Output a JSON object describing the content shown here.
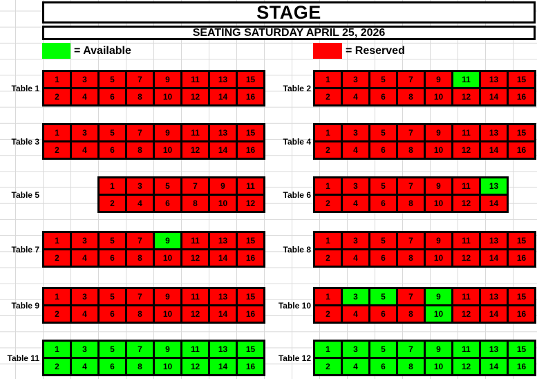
{
  "header": {
    "title": "STAGE",
    "subtitle": "SEATING SATURDAY APRIL 25, 2026"
  },
  "legend": {
    "available_label": "= Available",
    "reserved_label": "= Reserved"
  },
  "colors": {
    "available": "#00ff00",
    "reserved": "#ff0000",
    "border": "#000000",
    "gridline": "#d9d9d9",
    "background": "#ffffff"
  },
  "tables": [
    {
      "label": "Table 1",
      "side": "left",
      "seat_rows": [
        [
          1,
          3,
          5,
          7,
          9,
          11,
          13,
          15
        ],
        [
          2,
          4,
          6,
          8,
          10,
          12,
          14,
          16
        ]
      ],
      "available": []
    },
    {
      "label": "Table 2",
      "side": "right",
      "seat_rows": [
        [
          1,
          3,
          5,
          7,
          9,
          11,
          13,
          15
        ],
        [
          2,
          4,
          6,
          8,
          10,
          12,
          14,
          16
        ]
      ],
      "available": [
        11
      ]
    },
    {
      "label": "Table 3",
      "side": "left",
      "seat_rows": [
        [
          1,
          3,
          5,
          7,
          9,
          11,
          13,
          15
        ],
        [
          2,
          4,
          6,
          8,
          10,
          12,
          14,
          16
        ]
      ],
      "available": []
    },
    {
      "label": "Table 4",
      "side": "right",
      "seat_rows": [
        [
          1,
          3,
          5,
          7,
          9,
          11,
          13,
          15
        ],
        [
          2,
          4,
          6,
          8,
          10,
          12,
          14,
          16
        ]
      ],
      "available": []
    },
    {
      "label": "Table 5",
      "side": "left",
      "seat_rows": [
        [
          1,
          3,
          5,
          7,
          9,
          11
        ],
        [
          2,
          4,
          6,
          8,
          10,
          12
        ]
      ],
      "available": []
    },
    {
      "label": "Table 6",
      "side": "right",
      "seat_rows": [
        [
          1,
          3,
          5,
          7,
          9,
          11,
          13
        ],
        [
          2,
          4,
          6,
          8,
          10,
          12,
          14
        ]
      ],
      "available": [
        13
      ]
    },
    {
      "label": "Table 7",
      "side": "left",
      "seat_rows": [
        [
          1,
          3,
          5,
          7,
          9,
          11,
          13,
          15
        ],
        [
          2,
          4,
          6,
          8,
          10,
          12,
          14,
          16
        ]
      ],
      "available": [
        9
      ]
    },
    {
      "label": "Table 8",
      "side": "right",
      "seat_rows": [
        [
          1,
          3,
          5,
          7,
          9,
          11,
          13,
          15
        ],
        [
          2,
          4,
          6,
          8,
          10,
          12,
          14,
          16
        ]
      ],
      "available": []
    },
    {
      "label": "Table 9",
      "side": "left",
      "seat_rows": [
        [
          1,
          3,
          5,
          7,
          9,
          11,
          13,
          15
        ],
        [
          2,
          4,
          6,
          8,
          10,
          12,
          14,
          16
        ]
      ],
      "available": []
    },
    {
      "label": "Table 10",
      "side": "right",
      "seat_rows": [
        [
          1,
          3,
          5,
          7,
          9,
          11,
          13,
          15
        ],
        [
          2,
          4,
          6,
          8,
          10,
          12,
          14,
          16
        ]
      ],
      "available": [
        3,
        5,
        9,
        10
      ]
    },
    {
      "label": "Table 11",
      "side": "left",
      "seat_rows": [
        [
          1,
          3,
          5,
          7,
          9,
          11,
          13,
          15
        ],
        [
          2,
          4,
          6,
          8,
          10,
          12,
          14,
          16
        ]
      ],
      "available": [
        1,
        2,
        3,
        4,
        5,
        6,
        7,
        8,
        9,
        10,
        11,
        12,
        13,
        14,
        15,
        16
      ]
    },
    {
      "label": "Table 12",
      "side": "right",
      "seat_rows": [
        [
          1,
          3,
          5,
          7,
          9,
          11,
          13,
          15
        ],
        [
          2,
          4,
          6,
          8,
          10,
          12,
          14,
          16
        ]
      ],
      "available": [
        1,
        2,
        3,
        4,
        5,
        6,
        7,
        8,
        9,
        10,
        11,
        12,
        13,
        14,
        15,
        16
      ]
    }
  ]
}
